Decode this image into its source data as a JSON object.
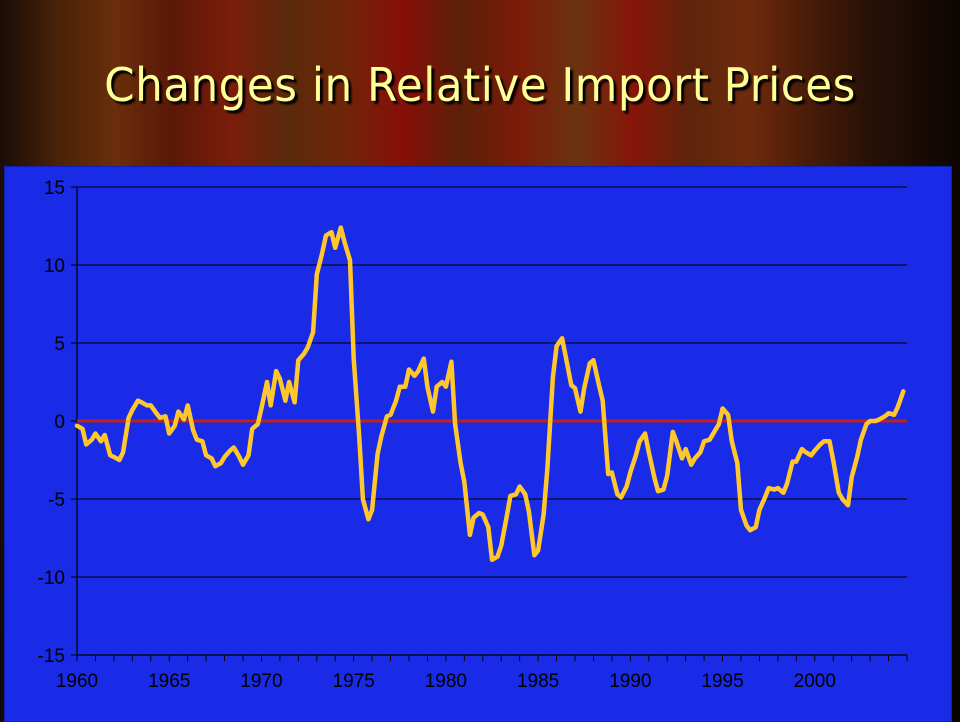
{
  "slide": {
    "title": "Changes in Relative Import Prices"
  },
  "colors": {
    "plot_background": "#1a2be8",
    "series_line": "#ffc72c",
    "zero_line": "#c0221a",
    "title_text": "#ffff99"
  },
  "chart_data": {
    "type": "line",
    "title": "",
    "xlabel": "",
    "ylabel": "",
    "ylim": [
      -15,
      15
    ],
    "xlim": [
      1960,
      2005
    ],
    "y_ticks": [
      15,
      10,
      5,
      0,
      -5,
      -10,
      -15
    ],
    "y_tick_labels": [
      "15",
      "10",
      "5",
      "0",
      "-5",
      "-10",
      "-15"
    ],
    "x_tick_labels": [
      "1960",
      "1965",
      "1970",
      "1975",
      "1980",
      "1985",
      "1990",
      "1995",
      "2000"
    ],
    "x_tick_values": [
      1960,
      1965,
      1970,
      1975,
      1980,
      1985,
      1990,
      1995,
      2000
    ],
    "grid": true,
    "legend": "none",
    "reference_line": {
      "y": 0
    },
    "series": [
      {
        "x": [
          1960.0,
          1960.3,
          1960.5,
          1960.8,
          1961.0,
          1961.3,
          1961.5,
          1961.8,
          1962.0,
          1962.3,
          1962.5,
          1962.8,
          1963.0,
          1963.3,
          1963.5,
          1963.8,
          1964.0,
          1964.3,
          1964.5,
          1964.8,
          1965.0,
          1965.3,
          1965.5,
          1965.8,
          1966.0,
          1966.3,
          1966.5,
          1966.8,
          1967.0,
          1967.3,
          1967.5,
          1967.8,
          1968.0,
          1968.3,
          1968.5,
          1968.8,
          1969.0,
          1969.3,
          1969.5,
          1969.8,
          1970.0,
          1970.3,
          1970.5,
          1970.8,
          1971.0,
          1971.3,
          1971.5,
          1971.8,
          1972.0,
          1972.3,
          1972.5,
          1972.8,
          1973.0,
          1973.3,
          1973.5,
          1973.8,
          1974.0,
          1974.3,
          1974.5,
          1974.8,
          1975.0,
          1975.3,
          1975.5,
          1975.8,
          1976.0,
          1976.3,
          1976.5,
          1976.8,
          1977.0,
          1977.3,
          1977.5,
          1977.8,
          1978.0,
          1978.3,
          1978.5,
          1978.8,
          1979.0,
          1979.3,
          1979.5,
          1979.8,
          1980.0,
          1980.3,
          1980.5,
          1980.8,
          1981.0,
          1981.3,
          1981.5,
          1981.8,
          1982.0,
          1982.3,
          1982.5,
          1982.8,
          1983.0,
          1983.3,
          1983.5,
          1983.8,
          1984.0,
          1984.3,
          1984.5,
          1984.8,
          1985.0,
          1985.3,
          1985.5,
          1985.8,
          1986.0,
          1986.3,
          1986.5,
          1986.8,
          1987.0,
          1987.3,
          1987.5,
          1987.8,
          1988.0,
          1988.3,
          1988.5,
          1988.8,
          1989.0,
          1989.3,
          1989.5,
          1989.8,
          1990.0,
          1990.3,
          1990.5,
          1990.8,
          1991.0,
          1991.3,
          1991.5,
          1991.8,
          1992.0,
          1992.3,
          1992.5,
          1992.8,
          1993.0,
          1993.3,
          1993.5,
          1993.8,
          1994.0,
          1994.3,
          1994.5,
          1994.8,
          1995.0,
          1995.3,
          1995.5,
          1995.8,
          1996.0,
          1996.3,
          1996.5,
          1996.8,
          1997.0,
          1997.3,
          1997.5,
          1997.8,
          1998.0,
          1998.3,
          1998.5,
          1998.8,
          1999.0,
          1999.3,
          1999.5,
          1999.8,
          2000.0,
          2000.3,
          2000.5,
          2000.8,
          2001.0,
          2001.3,
          2001.5,
          2001.8,
          2002.0,
          2002.3,
          2002.5,
          2002.8,
          2003.0,
          2003.3,
          2003.5,
          2003.8,
          2004.0,
          2004.3,
          2004.5,
          2004.8
        ],
        "y": [
          -0.3,
          -0.5,
          -1.5,
          -1.2,
          -0.8,
          -1.3,
          -0.9,
          -2.2,
          -2.3,
          -2.5,
          -2.0,
          0.2,
          0.7,
          1.3,
          1.2,
          1.0,
          1.0,
          0.5,
          0.2,
          0.3,
          -0.8,
          -0.3,
          0.6,
          0.1,
          1.0,
          -0.6,
          -1.2,
          -1.3,
          -2.2,
          -2.4,
          -2.9,
          -2.7,
          -2.3,
          -1.9,
          -1.7,
          -2.3,
          -2.8,
          -2.2,
          -0.5,
          -0.2,
          0.8,
          2.5,
          1.0,
          3.2,
          2.7,
          1.3,
          2.5,
          1.2,
          3.9,
          4.3,
          4.7,
          5.7,
          9.4,
          10.8,
          11.9,
          12.1,
          11.1,
          12.4,
          11.5,
          10.3,
          4.0,
          -1.0,
          -5.0,
          -6.3,
          -5.7,
          -2.1,
          -1.0,
          0.3,
          0.4,
          1.3,
          2.2,
          2.2,
          3.3,
          2.9,
          3.2,
          4.0,
          2.2,
          0.6,
          2.2,
          2.5,
          2.2,
          3.8,
          -0.2,
          -2.7,
          -3.9,
          -7.3,
          -6.2,
          -5.9,
          -6.0,
          -6.8,
          -8.9,
          -8.7,
          -8.0,
          -6.1,
          -4.8,
          -4.7,
          -4.2,
          -4.7,
          -5.8,
          -8.6,
          -8.3,
          -6.0,
          -3.1,
          2.8,
          4.8,
          5.3,
          4.1,
          2.3,
          2.1,
          0.6,
          2.1,
          3.7,
          3.9,
          2.3,
          1.3,
          -3.4,
          -3.3,
          -4.7,
          -4.9,
          -4.2,
          -3.3,
          -2.2,
          -1.3,
          -0.8,
          -2.0,
          -3.6,
          -4.5,
          -4.4,
          -3.5,
          -0.7,
          -1.3,
          -2.4,
          -1.8,
          -2.8,
          -2.4,
          -2.0,
          -1.3,
          -1.2,
          -0.8,
          -0.2,
          0.8,
          0.4,
          -1.3,
          -2.7,
          -5.7,
          -6.7,
          -7.0,
          -6.8,
          -5.7,
          -4.9,
          -4.3,
          -4.4,
          -4.3,
          -4.6,
          -4.0,
          -2.6,
          -2.6,
          -1.8,
          -2.0,
          -2.2,
          -1.9,
          -1.5,
          -1.3,
          -1.3,
          -2.5,
          -4.6,
          -5.0,
          -5.4,
          -3.6,
          -2.3,
          -1.2,
          -0.2,
          0.0,
          0.0,
          0.1,
          0.3,
          0.5,
          0.4,
          0.9,
          1.9
        ]
      }
    ]
  }
}
